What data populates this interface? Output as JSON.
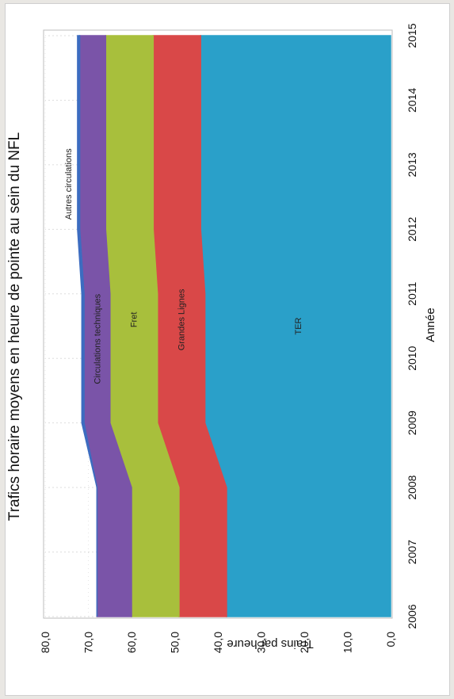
{
  "chart_data": {
    "type": "area",
    "stacked": true,
    "orientation": "rotated-90-ccw",
    "title": "Trafics horaire moyens  en heure de pointe au sein du NFL",
    "xlabel": "Année",
    "ylabel": "Trains par heure",
    "x": [
      2006,
      2007,
      2008,
      2009,
      2010,
      2011,
      2012,
      2013,
      2014,
      2015
    ],
    "ylim": [
      0,
      80
    ],
    "yticks": [
      "0,0",
      "10,0",
      "20,0",
      "30,0",
      "40,0",
      "50,0",
      "60,0",
      "70,0",
      "80,0"
    ],
    "grid": true,
    "legend": "inline labels",
    "series": [
      {
        "name": "TER",
        "color": "#2aa0c9",
        "values": [
          38,
          38,
          38,
          43,
          43,
          43,
          44,
          44,
          44,
          44
        ]
      },
      {
        "name": "Grandes Lignes",
        "color": "#d94848",
        "values": [
          11,
          11,
          11,
          11,
          11,
          11,
          11,
          11,
          11,
          11
        ]
      },
      {
        "name": "Fret",
        "color": "#a8bf3c",
        "values": [
          11,
          11,
          11,
          11,
          11,
          11,
          11,
          11,
          11,
          11
        ]
      },
      {
        "name": "Circulations techniques",
        "color": "#7a54a8",
        "values": [
          8,
          8,
          8,
          6,
          6,
          6,
          6,
          6,
          6,
          6
        ]
      },
      {
        "name": "Autres circulations",
        "color": "#3d6cc0",
        "values": [
          0,
          0,
          0,
          0.5,
          0.5,
          0.5,
          0.5,
          0.5,
          0.5,
          0.5
        ]
      }
    ]
  }
}
